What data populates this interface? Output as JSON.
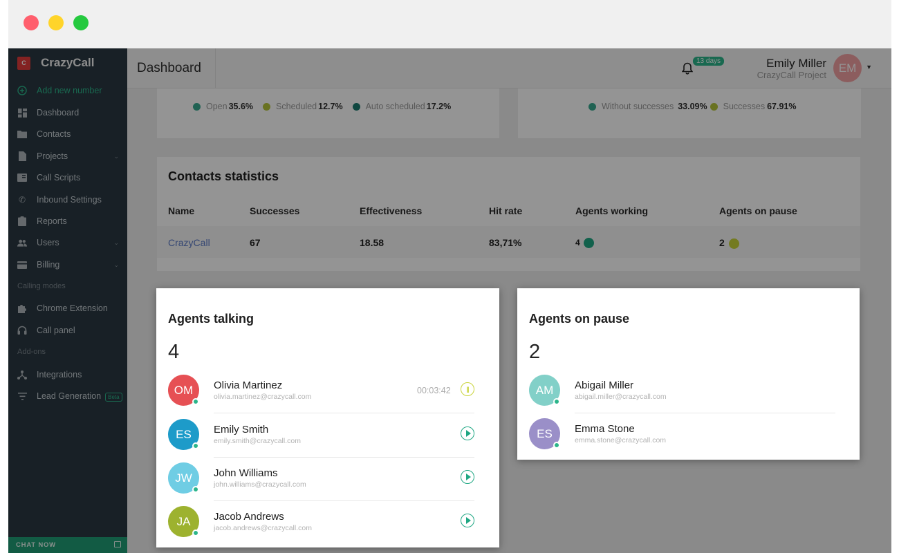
{
  "sidebar": {
    "brand_logo": "C",
    "brand_name": "CrazyCall",
    "add_new": "Add new number",
    "items": {
      "dashboard": "Dashboard",
      "contacts": "Contacts",
      "projects": "Projects",
      "call_scripts": "Call Scripts",
      "inbound": "Inbound Settings",
      "reports": "Reports",
      "users": "Users",
      "billing": "Billing",
      "chrome": "Chrome Extension",
      "call_panel": "Call panel",
      "integrations": "Integrations",
      "lead_gen": "Lead Generation"
    },
    "section_calling": "Calling modes",
    "section_addons": "Add-ons",
    "beta_badge": "Beta",
    "chat_now": "CHAT NOW"
  },
  "header": {
    "title": "Dashboard",
    "trial_badge": "13 days",
    "user_name": "Emily Miller",
    "user_project": "CrazyCall Project",
    "user_initials": "EM"
  },
  "legends": {
    "left": [
      {
        "label": "Open",
        "value": "35.6%",
        "color": "#37a98f"
      },
      {
        "label": "Scheduled",
        "value": "12.7%",
        "color": "#b6c53a"
      },
      {
        "label": "Auto scheduled",
        "value": "17.2%",
        "color": "#1b7a6f"
      }
    ],
    "right": [
      {
        "label": "Without successes",
        "value": "33.09%",
        "color": "#37a98f"
      },
      {
        "label": "Successes",
        "value": "67.91%",
        "color": "#b6c53a"
      }
    ]
  },
  "contacts_statistics": {
    "title": "Contacts statistics",
    "headers": {
      "name": "Name",
      "successes": "Successes",
      "effectiveness": "Effectiveness",
      "hit_rate": "Hit rate",
      "agents_working": "Agents working",
      "agents_on_pause": "Agents on pause"
    },
    "row": {
      "name": "CrazyCall",
      "successes": "67",
      "effectiveness": "18.58",
      "hit_rate": "83,71%",
      "agents_working": "4",
      "agents_on_pause": "2",
      "working_color": "#1fa783",
      "pause_color": "#c9d43a"
    }
  },
  "agents_talking": {
    "title": "Agents talking",
    "count": "4",
    "agents": [
      {
        "initials": "OM",
        "name": "Olivia Martinez",
        "email": "olivia.martinez@crazycall.com",
        "timer": "00:03:42",
        "color": "#e65054"
      },
      {
        "initials": "ES",
        "name": "Emily Smith",
        "email": "emily.smith@crazycall.com",
        "color": "#1d9bc9"
      },
      {
        "initials": "JW",
        "name": "John Williams",
        "email": "john.williams@crazycall.com",
        "color": "#6fcde4"
      },
      {
        "initials": "JA",
        "name": "Jacob Andrews",
        "email": "jacob.andrews@crazycall.com",
        "color": "#9db22f"
      }
    ]
  },
  "agents_on_pause": {
    "title": "Agents on pause",
    "count": "2",
    "agents": [
      {
        "initials": "AM",
        "name": "Abigail Miller",
        "email": "abigail.miller@crazycall.com",
        "color": "#82d0c8"
      },
      {
        "initials": "ES",
        "name": "Emma Stone",
        "email": "emma.stone@crazycall.com",
        "color": "#9a8fc8"
      }
    ]
  }
}
